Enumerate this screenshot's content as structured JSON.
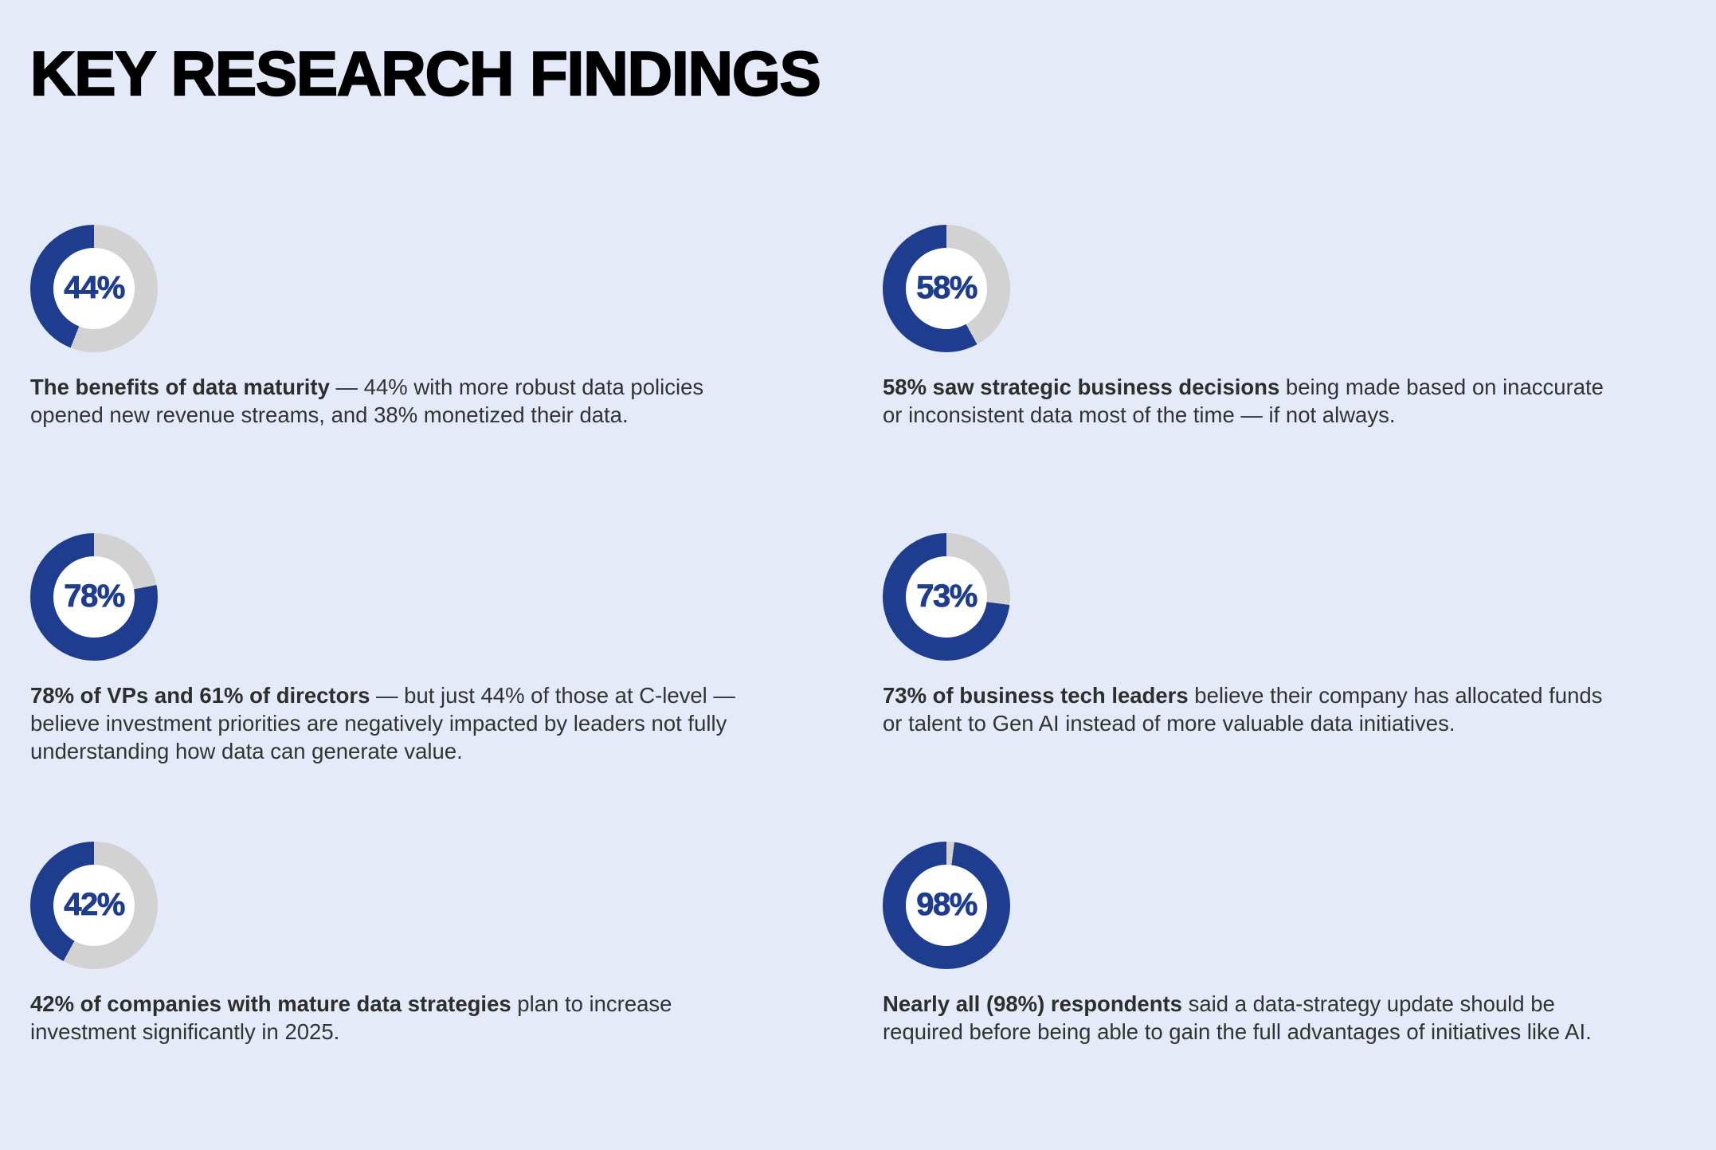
{
  "page": {
    "title": "KEY RESEARCH FINDINGS",
    "background": "#E5EAF8"
  },
  "colors": {
    "fill": "#1E3D8F",
    "track": "#D2D2D2",
    "hole": "#FFFFFF",
    "body_text": "#333333",
    "title_text": "#000000"
  },
  "findings": [
    {
      "percent": 44,
      "label": "44%",
      "bold": "The benefits of data maturity",
      "rest": " — 44% with more robust data policies opened new revenue streams, and 38% monetized their data."
    },
    {
      "percent": 58,
      "label": "58%",
      "bold": "58% saw strategic business decisions",
      "rest": " being made based on inaccurate or inconsistent data most of the time — if not always."
    },
    {
      "percent": 78,
      "label": "78%",
      "bold": "78% of VPs and 61% of directors",
      "rest": " — but just 44% of those at C-level — believe investment priorities are negatively impacted by leaders not fully understanding how data can generate value."
    },
    {
      "percent": 73,
      "label": "73%",
      "bold": "73% of business tech leaders",
      "rest": " believe their company has allocated funds or talent to Gen AI instead of more valuable data initiatives."
    },
    {
      "percent": 42,
      "label": "42%",
      "bold": "42% of companies with mature data strategies",
      "rest": " plan to increase investment significantly in 2025."
    },
    {
      "percent": 98,
      "label": "98%",
      "bold": "Nearly all (98%) respondents",
      "rest": " said a data-strategy update should be required before being able to gain the full advantages of initiatives like AI."
    }
  ],
  "chart_data": [
    {
      "type": "pie",
      "subtype": "donut",
      "center_label": "44%",
      "labels": [
        "highlighted",
        "remainder"
      ],
      "values": [
        44,
        56
      ],
      "colors": [
        "#1E3D8F",
        "#D2D2D2"
      ],
      "start_angle_deg": 0,
      "fill_direction": "counterclockwise",
      "caption": "The benefits of data maturity — 44% with more robust data policies opened new revenue streams, and 38% monetized their data."
    },
    {
      "type": "pie",
      "subtype": "donut",
      "center_label": "58%",
      "labels": [
        "highlighted",
        "remainder"
      ],
      "values": [
        58,
        42
      ],
      "colors": [
        "#1E3D8F",
        "#D2D2D2"
      ],
      "start_angle_deg": 0,
      "fill_direction": "counterclockwise",
      "caption": "58% saw strategic business decisions being made based on inaccurate or inconsistent data most of the time — if not always."
    },
    {
      "type": "pie",
      "subtype": "donut",
      "center_label": "78%",
      "labels": [
        "highlighted",
        "remainder"
      ],
      "values": [
        78,
        22
      ],
      "colors": [
        "#1E3D8F",
        "#D2D2D2"
      ],
      "start_angle_deg": 0,
      "fill_direction": "counterclockwise",
      "caption": "78% of VPs and 61% of directors — but just 44% of those at C-level — believe investment priorities are negatively impacted by leaders not fully understanding how data can generate value."
    },
    {
      "type": "pie",
      "subtype": "donut",
      "center_label": "73%",
      "labels": [
        "highlighted",
        "remainder"
      ],
      "values": [
        73,
        27
      ],
      "colors": [
        "#1E3D8F",
        "#D2D2D2"
      ],
      "start_angle_deg": 0,
      "fill_direction": "counterclockwise",
      "caption": "73% of business tech leaders believe their company has allocated funds or talent to Gen AI instead of more valuable data initiatives."
    },
    {
      "type": "pie",
      "subtype": "donut",
      "center_label": "42%",
      "labels": [
        "highlighted",
        "remainder"
      ],
      "values": [
        42,
        58
      ],
      "colors": [
        "#1E3D8F",
        "#D2D2D2"
      ],
      "start_angle_deg": 0,
      "fill_direction": "counterclockwise",
      "caption": "42% of companies with mature data strategies plan to increase investment significantly in 2025."
    },
    {
      "type": "pie",
      "subtype": "donut",
      "center_label": "98%",
      "labels": [
        "highlighted",
        "remainder"
      ],
      "values": [
        98,
        2
      ],
      "colors": [
        "#1E3D8F",
        "#D2D2D2"
      ],
      "start_angle_deg": 0,
      "fill_direction": "counterclockwise",
      "caption": "Nearly all (98%) respondents said a data-strategy update should be required before being able to gain the full advantages of initiatives like AI."
    }
  ]
}
